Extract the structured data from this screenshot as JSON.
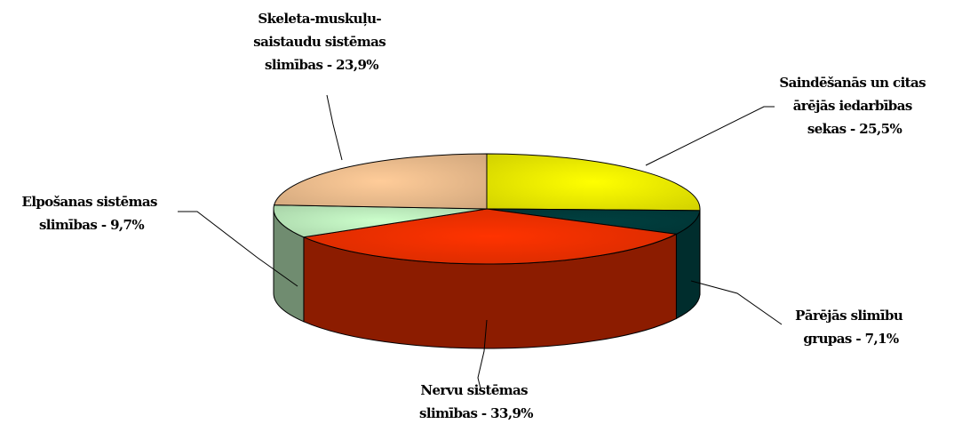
{
  "chart_data": {
    "type": "pie",
    "style": "3d",
    "slices": [
      {
        "label_lines": [
          "Saindēšanās un citas",
          "ārējās iedarbības",
          "sekas - 25,5%"
        ],
        "value": 25.5,
        "color": "#ffff00"
      },
      {
        "label_lines": [
          "Pārējās slimību",
          "grupas - 7,1%"
        ],
        "value": 7.1,
        "color": "#004040"
      },
      {
        "label_lines": [
          "Nervu sistēmas",
          "slimības - 33,9%"
        ],
        "value": 33.9,
        "color": "#ff3300"
      },
      {
        "label_lines": [
          "Elpošanas sistēmas",
          "slimības - 9,7%"
        ],
        "value": 9.7,
        "color": "#ccffcc"
      },
      {
        "label_lines": [
          "Skeleta-muskuļu-",
          "saistaudu sistēmas",
          "slimības - 23,9%"
        ],
        "value": 23.9,
        "color": "#ffcc99"
      }
    ]
  }
}
